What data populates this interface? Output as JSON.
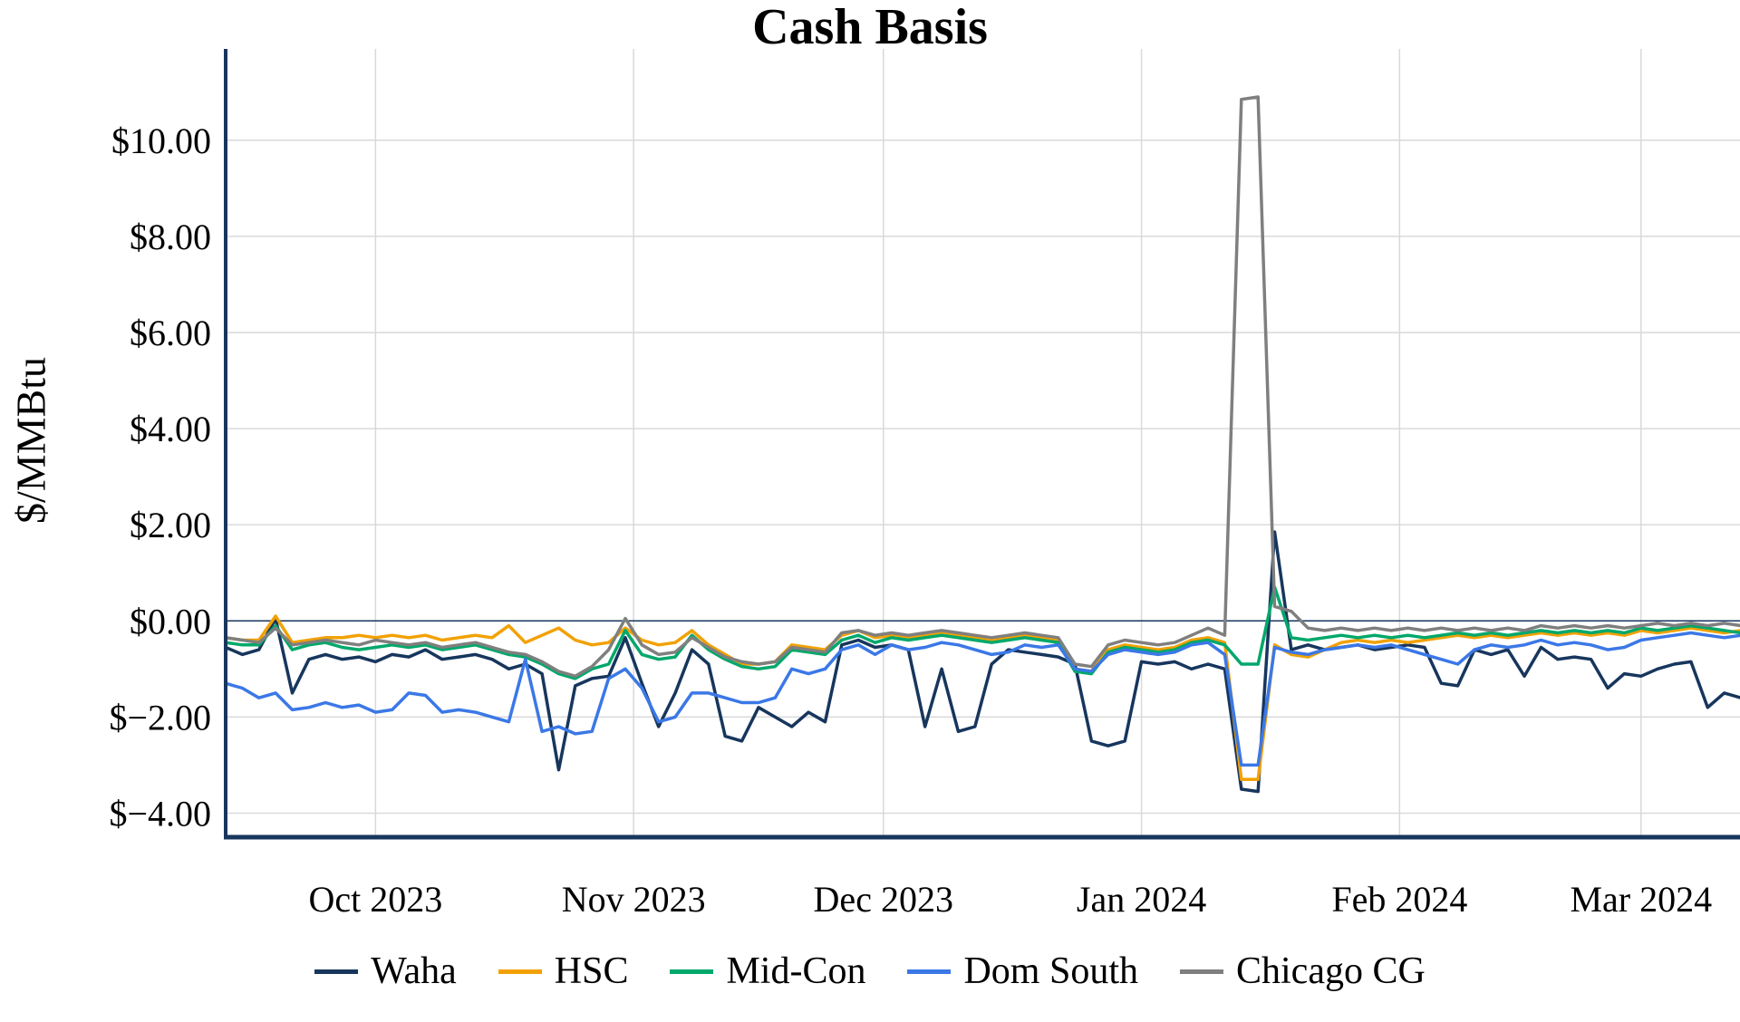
{
  "chart_data": {
    "type": "line",
    "title": "Cash Basis",
    "ylabel": "$/MMBtu",
    "grid": true,
    "grid_color": "#d9d9d9",
    "axis_color": "#17365d",
    "legend_position": "bottom",
    "ylim": [
      -4.5,
      11.9
    ],
    "x_domain": [
      0,
      182
    ],
    "x0": 0,
    "dx": 2,
    "yticks": [
      {
        "value": -4,
        "label": "$−4.00"
      },
      {
        "value": -2,
        "label": "$−2.00"
      },
      {
        "value": 0,
        "label": "$0.00"
      },
      {
        "value": 2,
        "label": "$2.00"
      },
      {
        "value": 4,
        "label": "$4.00"
      },
      {
        "value": 6,
        "label": "$6.00"
      },
      {
        "value": 8,
        "label": "$8.00"
      },
      {
        "value": 10,
        "label": "$10.00"
      }
    ],
    "xticks": [
      {
        "day": 18,
        "label": "Oct 2023"
      },
      {
        "day": 49,
        "label": "Nov 2023"
      },
      {
        "day": 79,
        "label": "Dec 2023"
      },
      {
        "day": 110,
        "label": "Jan 2024"
      },
      {
        "day": 141,
        "label": "Feb 2024"
      },
      {
        "day": 170,
        "label": "Mar 2024"
      }
    ],
    "zero_line_value": 0,
    "series": [
      {
        "name": "Waha",
        "color": "#17365d",
        "values": [
          -0.55,
          -0.7,
          -0.6,
          0.05,
          -1.5,
          -0.8,
          -0.7,
          -0.8,
          -0.75,
          -0.85,
          -0.7,
          -0.75,
          -0.6,
          -0.8,
          -0.75,
          -0.7,
          -0.8,
          -1.0,
          -0.9,
          -1.1,
          -3.1,
          -1.35,
          -1.2,
          -1.15,
          -0.35,
          -1.3,
          -2.2,
          -1.5,
          -0.6,
          -0.9,
          -2.4,
          -2.5,
          -1.8,
          -2.0,
          -2.2,
          -1.9,
          -2.1,
          -0.5,
          -0.4,
          -0.55,
          -0.5,
          -0.6,
          -2.2,
          -1.0,
          -2.3,
          -2.2,
          -0.9,
          -0.6,
          -0.65,
          -0.7,
          -0.75,
          -0.9,
          -2.5,
          -2.6,
          -2.5,
          -0.85,
          -0.9,
          -0.85,
          -1.0,
          -0.9,
          -1.0,
          -3.5,
          -3.55,
          1.85,
          -0.6,
          -0.5,
          -0.6,
          -0.55,
          -0.5,
          -0.6,
          -0.55,
          -0.5,
          -0.55,
          -1.3,
          -1.35,
          -0.6,
          -0.7,
          -0.6,
          -1.15,
          -0.55,
          -0.8,
          -0.75,
          -0.8,
          -1.4,
          -1.1,
          -1.15,
          -1.0,
          -0.9,
          -0.85,
          -1.8,
          -1.5,
          -1.6
        ]
      },
      {
        "name": "HSC",
        "color": "#f2a104",
        "values": [
          -0.35,
          -0.4,
          -0.4,
          0.1,
          -0.45,
          -0.4,
          -0.35,
          -0.35,
          -0.3,
          -0.35,
          -0.3,
          -0.35,
          -0.3,
          -0.4,
          -0.35,
          -0.3,
          -0.35,
          -0.1,
          -0.45,
          -0.3,
          -0.15,
          -0.4,
          -0.5,
          -0.45,
          -0.15,
          -0.4,
          -0.5,
          -0.45,
          -0.2,
          -0.5,
          -0.7,
          -0.9,
          -0.9,
          -0.85,
          -0.5,
          -0.55,
          -0.6,
          -0.3,
          -0.2,
          -0.35,
          -0.3,
          -0.35,
          -0.3,
          -0.25,
          -0.3,
          -0.35,
          -0.4,
          -0.35,
          -0.3,
          -0.35,
          -0.4,
          -1.0,
          -1.05,
          -0.6,
          -0.5,
          -0.55,
          -0.6,
          -0.55,
          -0.4,
          -0.35,
          -0.45,
          -3.3,
          -3.3,
          -0.5,
          -0.7,
          -0.75,
          -0.6,
          -0.45,
          -0.4,
          -0.45,
          -0.4,
          -0.45,
          -0.4,
          -0.35,
          -0.3,
          -0.35,
          -0.3,
          -0.35,
          -0.3,
          -0.25,
          -0.3,
          -0.25,
          -0.3,
          -0.25,
          -0.3,
          -0.2,
          -0.25,
          -0.2,
          -0.15,
          -0.2,
          -0.25,
          -0.2
        ]
      },
      {
        "name": "Mid-Con",
        "color": "#00a86b",
        "values": [
          -0.45,
          -0.5,
          -0.5,
          -0.1,
          -0.6,
          -0.5,
          -0.45,
          -0.55,
          -0.6,
          -0.55,
          -0.5,
          -0.55,
          -0.5,
          -0.6,
          -0.55,
          -0.5,
          -0.6,
          -0.7,
          -0.75,
          -0.9,
          -1.1,
          -1.2,
          -1.0,
          -0.9,
          -0.2,
          -0.7,
          -0.8,
          -0.75,
          -0.3,
          -0.6,
          -0.8,
          -0.95,
          -1.0,
          -0.95,
          -0.6,
          -0.65,
          -0.7,
          -0.4,
          -0.3,
          -0.45,
          -0.35,
          -0.4,
          -0.35,
          -0.3,
          -0.35,
          -0.4,
          -0.45,
          -0.4,
          -0.35,
          -0.4,
          -0.45,
          -1.05,
          -1.1,
          -0.65,
          -0.55,
          -0.6,
          -0.65,
          -0.6,
          -0.45,
          -0.4,
          -0.5,
          -0.9,
          -0.9,
          0.7,
          -0.35,
          -0.4,
          -0.35,
          -0.3,
          -0.35,
          -0.3,
          -0.35,
          -0.3,
          -0.35,
          -0.3,
          -0.25,
          -0.3,
          -0.25,
          -0.3,
          -0.25,
          -0.2,
          -0.25,
          -0.2,
          -0.25,
          -0.2,
          -0.25,
          -0.15,
          -0.2,
          -0.15,
          -0.1,
          -0.15,
          -0.2,
          -0.25
        ]
      },
      {
        "name": "Dom South",
        "color": "#3b78e7",
        "values": [
          -1.3,
          -1.4,
          -1.6,
          -1.5,
          -1.85,
          -1.8,
          -1.7,
          -1.8,
          -1.75,
          -1.9,
          -1.85,
          -1.5,
          -1.55,
          -1.9,
          -1.85,
          -1.9,
          -2.0,
          -2.1,
          -0.8,
          -2.3,
          -2.2,
          -2.35,
          -2.3,
          -1.2,
          -1.0,
          -1.4,
          -2.1,
          -2.0,
          -1.5,
          -1.5,
          -1.6,
          -1.7,
          -1.7,
          -1.6,
          -1.0,
          -1.1,
          -1.0,
          -0.6,
          -0.5,
          -0.7,
          -0.5,
          -0.6,
          -0.55,
          -0.45,
          -0.5,
          -0.6,
          -0.7,
          -0.65,
          -0.5,
          -0.55,
          -0.5,
          -1.0,
          -1.05,
          -0.7,
          -0.6,
          -0.65,
          -0.7,
          -0.65,
          -0.5,
          -0.45,
          -0.7,
          -3.0,
          -3.0,
          -0.55,
          -0.65,
          -0.7,
          -0.6,
          -0.55,
          -0.5,
          -0.55,
          -0.5,
          -0.6,
          -0.7,
          -0.8,
          -0.9,
          -0.6,
          -0.5,
          -0.55,
          -0.5,
          -0.4,
          -0.5,
          -0.45,
          -0.5,
          -0.6,
          -0.55,
          -0.4,
          -0.35,
          -0.3,
          -0.25,
          -0.3,
          -0.35,
          -0.3
        ]
      },
      {
        "name": "Chicago CG",
        "color": "#7f7f7f",
        "values": [
          -0.35,
          -0.4,
          -0.45,
          -0.15,
          -0.5,
          -0.45,
          -0.4,
          -0.45,
          -0.5,
          -0.4,
          -0.45,
          -0.5,
          -0.45,
          -0.55,
          -0.5,
          -0.45,
          -0.55,
          -0.65,
          -0.7,
          -0.85,
          -1.05,
          -1.15,
          -0.95,
          -0.6,
          0.05,
          -0.5,
          -0.7,
          -0.65,
          -0.35,
          -0.55,
          -0.75,
          -0.85,
          -0.9,
          -0.85,
          -0.55,
          -0.6,
          -0.65,
          -0.25,
          -0.2,
          -0.3,
          -0.25,
          -0.3,
          -0.25,
          -0.2,
          -0.25,
          -0.3,
          -0.35,
          -0.3,
          -0.25,
          -0.3,
          -0.35,
          -0.9,
          -0.95,
          -0.5,
          -0.4,
          -0.45,
          -0.5,
          -0.45,
          -0.3,
          -0.15,
          -0.3,
          10.85,
          10.9,
          0.3,
          0.2,
          -0.15,
          -0.2,
          -0.15,
          -0.2,
          -0.15,
          -0.2,
          -0.15,
          -0.2,
          -0.15,
          -0.2,
          -0.15,
          -0.2,
          -0.15,
          -0.2,
          -0.1,
          -0.15,
          -0.1,
          -0.15,
          -0.1,
          -0.15,
          -0.1,
          -0.05,
          -0.1,
          -0.05,
          -0.1,
          -0.05,
          -0.1
        ]
      }
    ]
  }
}
